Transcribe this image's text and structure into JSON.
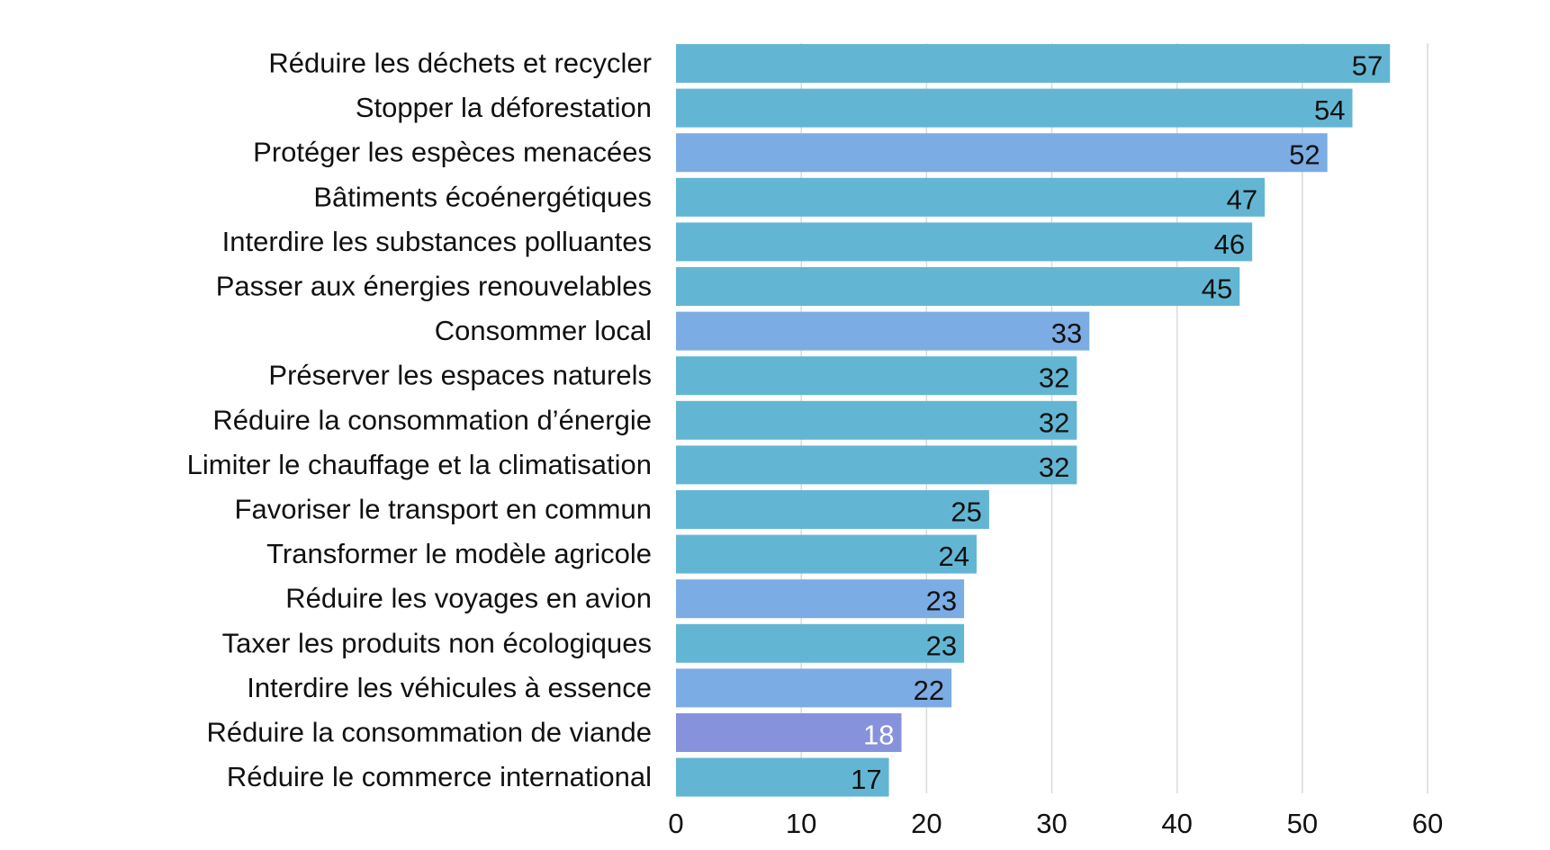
{
  "chart_data": {
    "type": "bar",
    "orientation": "horizontal",
    "title": "",
    "xlabel": "",
    "ylabel": "",
    "xlim": [
      0,
      60
    ],
    "xticks": [
      0,
      10,
      20,
      30,
      40,
      50,
      60
    ],
    "grid": "vertical",
    "legend": "none",
    "colors": {
      "teal": "#63b6d3",
      "blue": "#7bace3",
      "purple": "#8792dd"
    },
    "categories": [
      "Réduire les déchets et recycler",
      "Stopper la déforestation",
      "Protéger les espèces menacées",
      "Bâtiments écoénergétiques",
      "Interdire les substances polluantes",
      "Passer aux énergies renouvelables",
      "Consommer local",
      "Préserver les espaces naturels",
      "Réduire la consommation d’énergie",
      "Limiter le chauffage et la climatisation",
      "Favoriser le transport en commun",
      "Transformer le modèle agricole",
      "Réduire les voyages en avion",
      "Taxer les produits non écologiques",
      "Interdire les véhicules à essence",
      "Réduire la consommation de viande",
      "Réduire le commerce international"
    ],
    "values": [
      57,
      54,
      52,
      47,
      46,
      45,
      33,
      32,
      32,
      32,
      25,
      24,
      23,
      23,
      22,
      18,
      17
    ],
    "bar_colors": [
      "#63b6d3",
      "#63b6d3",
      "#7bace3",
      "#63b6d3",
      "#63b6d3",
      "#63b6d3",
      "#7bace3",
      "#63b6d3",
      "#63b6d3",
      "#63b6d3",
      "#63b6d3",
      "#63b6d3",
      "#7bace3",
      "#63b6d3",
      "#7bace3",
      "#8792dd",
      "#63b6d3"
    ],
    "label_colors": [
      "#111111",
      "#111111",
      "#111111",
      "#111111",
      "#111111",
      "#111111",
      "#111111",
      "#111111",
      "#111111",
      "#111111",
      "#111111",
      "#111111",
      "#111111",
      "#111111",
      "#111111",
      "#ffffff",
      "#111111"
    ]
  }
}
